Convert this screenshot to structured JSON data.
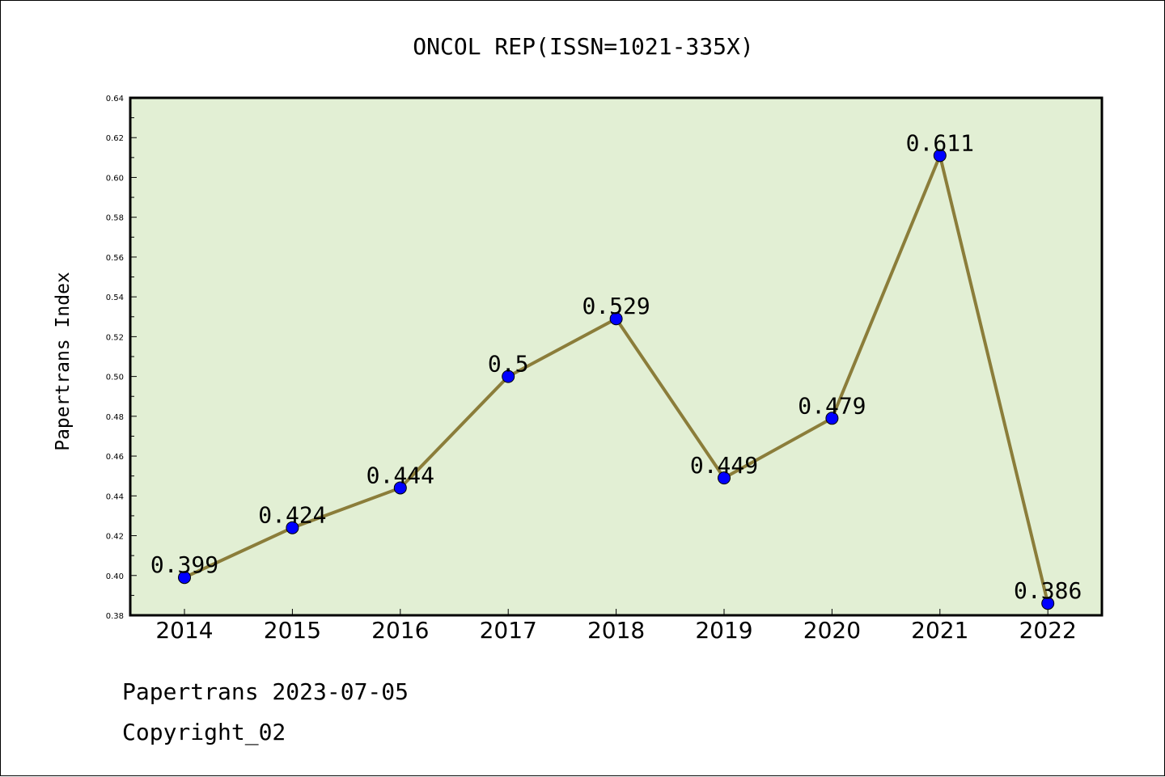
{
  "footer": {
    "line1": "Papertrans 2023-07-05",
    "line2": "Copyright_02"
  },
  "chart_data": {
    "type": "line",
    "title": "ONCOL REP(ISSN=1021-335X)",
    "xlabel": "",
    "ylabel": "Papertrans Index",
    "categories": [
      "2014",
      "2015",
      "2016",
      "2017",
      "2018",
      "2019",
      "2020",
      "2021",
      "2022"
    ],
    "values": [
      0.399,
      0.424,
      0.444,
      0.5,
      0.529,
      0.449,
      0.479,
      0.611,
      0.386
    ],
    "data_labels": [
      "0.399",
      "0.424",
      "0.444",
      "0.5",
      "0.529",
      "0.449",
      "0.479",
      "0.611",
      "0.386"
    ],
    "ylim": [
      0.38,
      0.64
    ],
    "yticks": [
      "0.38",
      "0.40",
      "0.42",
      "0.44",
      "0.46",
      "0.48",
      "0.50",
      "0.52",
      "0.54",
      "0.56",
      "0.58",
      "0.60",
      "0.62",
      "0.64"
    ],
    "grid": false,
    "colors": {
      "plot_background": "#e2efd4",
      "line": "#8b7d3a",
      "marker": "#0000ff"
    }
  }
}
